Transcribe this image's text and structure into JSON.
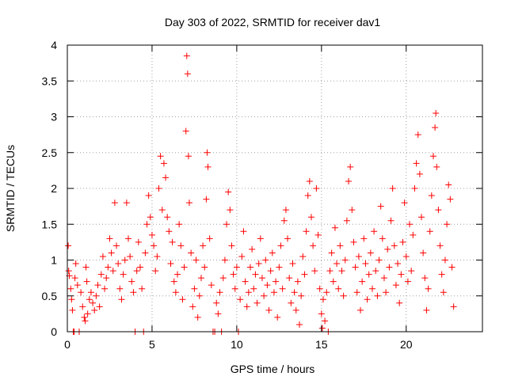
{
  "chart_data": {
    "type": "scatter",
    "title": "Day 303 of 2022, SRMTID for receiver dav1",
    "xlabel": "GPS time / hours",
    "ylabel": "SRMTID / TECUs",
    "xlim": [
      0,
      24.5
    ],
    "ylim": [
      0,
      4
    ],
    "xticks": [
      0,
      5,
      10,
      15,
      20
    ],
    "xtick_labels": [
      "0",
      "5",
      "10",
      "15",
      "20"
    ],
    "yticks": [
      0,
      0.5,
      1,
      1.5,
      2,
      2.5,
      3,
      3.5,
      4
    ],
    "ytick_labels": [
      "0",
      "0.5",
      "1",
      "1.5",
      "2",
      "2.5",
      "3",
      "3.5",
      "4"
    ],
    "grid": true,
    "marker": "+",
    "series": [
      {
        "name": "SRMTID",
        "color": "#ff0000",
        "points": [
          [
            0.05,
            1.2
          ],
          [
            0.08,
            0.85
          ],
          [
            0.12,
            0.78
          ],
          [
            0.2,
            0.6
          ],
          [
            0.25,
            0.45
          ],
          [
            0.3,
            0.3
          ],
          [
            0.35,
            0.0
          ],
          [
            0.4,
            0.0
          ],
          [
            0.45,
            0.75
          ],
          [
            0.5,
            0.95
          ],
          [
            0.6,
            0.65
          ],
          [
            0.7,
            0.0
          ],
          [
            0.8,
            0.55
          ],
          [
            0.9,
            0.35
          ],
          [
            1.0,
            0.2
          ],
          [
            1.05,
            0.15
          ],
          [
            1.1,
            0.9
          ],
          [
            1.15,
            0.7
          ],
          [
            1.2,
            0.25
          ],
          [
            1.3,
            0.45
          ],
          [
            1.4,
            0.55
          ],
          [
            1.5,
            0.4
          ],
          [
            1.6,
            0.3
          ],
          [
            1.7,
            0.5
          ],
          [
            1.8,
            0.65
          ],
          [
            1.9,
            0.35
          ],
          [
            2.0,
            0.8
          ],
          [
            2.1,
            1.05
          ],
          [
            2.2,
            0.6
          ],
          [
            2.3,
            0.75
          ],
          [
            2.4,
            0.9
          ],
          [
            2.5,
            1.3
          ],
          [
            2.6,
            1.1
          ],
          [
            2.7,
            0.85
          ],
          [
            2.8,
            1.8
          ],
          [
            2.9,
            1.2
          ],
          [
            3.0,
            0.95
          ],
          [
            3.1,
            0.6
          ],
          [
            3.2,
            0.45
          ],
          [
            3.3,
            0.8
          ],
          [
            3.4,
            1.0
          ],
          [
            3.5,
            1.8
          ],
          [
            3.6,
            1.3
          ],
          [
            3.7,
            1.05
          ],
          [
            3.8,
            0.7
          ],
          [
            3.9,
            0.55
          ],
          [
            4.0,
            0.0
          ],
          [
            4.1,
            0.85
          ],
          [
            4.2,
            1.25
          ],
          [
            4.3,
            0.9
          ],
          [
            4.4,
            0.6
          ],
          [
            4.5,
            0.0
          ],
          [
            4.6,
            1.1
          ],
          [
            4.7,
            1.5
          ],
          [
            4.8,
            1.9
          ],
          [
            4.9,
            1.6
          ],
          [
            5.0,
            1.35
          ],
          [
            5.1,
            1.2
          ],
          [
            5.2,
            0.85
          ],
          [
            5.3,
            1.05
          ],
          [
            5.4,
            2.0
          ],
          [
            5.5,
            2.45
          ],
          [
            5.6,
            1.7
          ],
          [
            5.7,
            2.35
          ],
          [
            5.8,
            2.15
          ],
          [
            5.9,
            1.6
          ],
          [
            6.0,
            1.4
          ],
          [
            6.1,
            0.95
          ],
          [
            6.2,
            1.25
          ],
          [
            6.3,
            0.7
          ],
          [
            6.4,
            0.55
          ],
          [
            6.5,
            0.8
          ],
          [
            6.6,
            1.5
          ],
          [
            6.7,
            1.2
          ],
          [
            6.8,
            0.45
          ],
          [
            6.9,
            0.9
          ],
          [
            7.0,
            2.8
          ],
          [
            7.05,
            3.85
          ],
          [
            7.1,
            3.6
          ],
          [
            7.15,
            2.45
          ],
          [
            7.2,
            1.8
          ],
          [
            7.3,
            1.1
          ],
          [
            7.4,
            0.35
          ],
          [
            7.5,
            0.6
          ],
          [
            7.6,
            1.0
          ],
          [
            7.7,
            0.2
          ],
          [
            7.8,
            0.5
          ],
          [
            7.9,
            0.75
          ],
          [
            8.0,
            1.2
          ],
          [
            8.1,
            0.9
          ],
          [
            8.2,
            1.85
          ],
          [
            8.25,
            2.5
          ],
          [
            8.3,
            2.3
          ],
          [
            8.4,
            1.3
          ],
          [
            8.5,
            0.65
          ],
          [
            8.6,
            0.0
          ],
          [
            8.7,
            0.0
          ],
          [
            8.8,
            0.4
          ],
          [
            8.9,
            0.25
          ],
          [
            9.0,
            0.55
          ],
          [
            9.1,
            0.0
          ],
          [
            9.2,
            0.75
          ],
          [
            9.3,
            1.0
          ],
          [
            9.4,
            1.5
          ],
          [
            9.5,
            1.95
          ],
          [
            9.6,
            1.7
          ],
          [
            9.7,
            1.2
          ],
          [
            9.8,
            0.8
          ],
          [
            9.9,
            0.6
          ],
          [
            10.0,
            0.9
          ],
          [
            10.1,
            0.0
          ],
          [
            10.2,
            0.45
          ],
          [
            10.3,
            1.05
          ],
          [
            10.4,
            1.4
          ],
          [
            10.5,
            0.7
          ],
          [
            10.6,
            0.35
          ],
          [
            10.7,
            0.55
          ],
          [
            10.8,
            0.9
          ],
          [
            10.9,
            1.15
          ],
          [
            11.0,
            0.6
          ],
          [
            11.1,
            0.8
          ],
          [
            11.2,
            0.4
          ],
          [
            11.3,
            0.95
          ],
          [
            11.4,
            1.3
          ],
          [
            11.5,
            0.75
          ],
          [
            11.6,
            0.5
          ],
          [
            11.7,
            1.0
          ],
          [
            11.8,
            0.65
          ],
          [
            11.9,
            0.3
          ],
          [
            12.0,
            0.85
          ],
          [
            12.1,
            1.1
          ],
          [
            12.2,
            0.55
          ],
          [
            12.3,
            0.7
          ],
          [
            12.4,
            0.2
          ],
          [
            12.5,
            0.9
          ],
          [
            12.6,
            1.2
          ],
          [
            12.7,
            0.6
          ],
          [
            12.8,
            1.55
          ],
          [
            12.9,
            1.7
          ],
          [
            13.0,
            1.3
          ],
          [
            13.1,
            0.75
          ],
          [
            13.2,
            0.4
          ],
          [
            13.3,
            0.95
          ],
          [
            13.4,
            0.55
          ],
          [
            13.5,
            0.3
          ],
          [
            13.6,
            0.7
          ],
          [
            13.7,
            0.1
          ],
          [
            13.8,
            0.5
          ],
          [
            13.9,
            1.05
          ],
          [
            14.0,
            0.8
          ],
          [
            14.1,
            1.4
          ],
          [
            14.2,
            1.9
          ],
          [
            14.3,
            2.1
          ],
          [
            14.4,
            1.6
          ],
          [
            14.5,
            1.2
          ],
          [
            14.6,
            0.85
          ],
          [
            14.7,
            2.0
          ],
          [
            14.8,
            1.35
          ],
          [
            14.9,
            0.6
          ],
          [
            15.0,
            0.25
          ],
          [
            15.05,
            0.05
          ],
          [
            15.1,
            0.45
          ],
          [
            15.2,
            0.15
          ],
          [
            15.3,
            0.55
          ],
          [
            15.4,
            0.0
          ],
          [
            15.5,
            0.85
          ],
          [
            15.6,
            1.1
          ],
          [
            15.7,
            0.7
          ],
          [
            15.8,
            1.45
          ],
          [
            15.9,
            0.95
          ],
          [
            16.0,
            0.6
          ],
          [
            16.1,
            1.2
          ],
          [
            16.2,
            0.85
          ],
          [
            16.3,
            0.5
          ],
          [
            16.4,
            1.0
          ],
          [
            16.5,
            1.55
          ],
          [
            16.6,
            2.1
          ],
          [
            16.7,
            2.3
          ],
          [
            16.8,
            1.7
          ],
          [
            16.9,
            1.25
          ],
          [
            17.0,
            0.9
          ],
          [
            17.1,
            0.55
          ],
          [
            17.2,
            1.05
          ],
          [
            17.3,
            0.3
          ],
          [
            17.4,
            0.7
          ],
          [
            17.5,
            1.3
          ],
          [
            17.6,
            0.95
          ],
          [
            17.7,
            0.45
          ],
          [
            17.8,
            0.8
          ],
          [
            17.9,
            1.1
          ],
          [
            18.0,
            0.6
          ],
          [
            18.1,
            1.4
          ],
          [
            18.2,
            0.85
          ],
          [
            18.3,
            0.5
          ],
          [
            18.4,
            1.0
          ],
          [
            18.5,
            1.75
          ],
          [
            18.6,
            1.3
          ],
          [
            18.7,
            0.75
          ],
          [
            18.8,
            0.55
          ],
          [
            18.9,
            1.15
          ],
          [
            19.0,
            0.9
          ],
          [
            19.1,
            1.55
          ],
          [
            19.2,
            2.0
          ],
          [
            19.3,
            1.2
          ],
          [
            19.4,
            0.65
          ],
          [
            19.5,
            0.95
          ],
          [
            19.6,
            0.4
          ],
          [
            19.7,
            0.8
          ],
          [
            19.8,
            1.25
          ],
          [
            19.9,
            1.8
          ],
          [
            20.0,
            1.05
          ],
          [
            20.1,
            0.7
          ],
          [
            20.2,
            1.5
          ],
          [
            20.3,
            0.85
          ],
          [
            20.4,
            1.35
          ],
          [
            20.5,
            2.0
          ],
          [
            20.6,
            2.35
          ],
          [
            20.7,
            2.75
          ],
          [
            20.8,
            2.2
          ],
          [
            20.9,
            1.6
          ],
          [
            21.0,
            1.1
          ],
          [
            21.1,
            0.75
          ],
          [
            21.2,
            0.3
          ],
          [
            21.3,
            0.6
          ],
          [
            21.4,
            1.4
          ],
          [
            21.5,
            1.9
          ],
          [
            21.6,
            2.45
          ],
          [
            21.7,
            2.85
          ],
          [
            21.75,
            3.05
          ],
          [
            21.8,
            2.3
          ],
          [
            21.9,
            1.7
          ],
          [
            22.0,
            1.2
          ],
          [
            22.1,
            0.8
          ],
          [
            22.2,
            0.55
          ],
          [
            22.3,
            1.0
          ],
          [
            22.4,
            1.5
          ],
          [
            22.5,
            2.05
          ],
          [
            22.6,
            1.85
          ],
          [
            22.7,
            0.9
          ],
          [
            22.8,
            0.35
          ]
        ]
      }
    ]
  }
}
